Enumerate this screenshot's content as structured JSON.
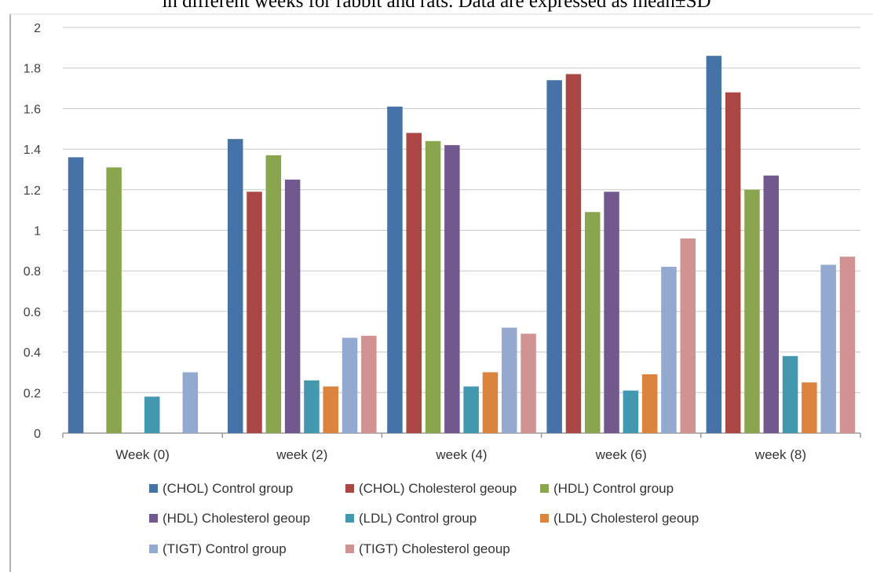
{
  "caption": "in different weeks for rabbit and rats. Data are expressed as mean±SD",
  "chart_data": {
    "type": "bar",
    "title": "",
    "xlabel": "",
    "ylabel": "",
    "ylim": [
      0,
      2
    ],
    "yticks": [
      "0",
      "0.2",
      "0.4",
      "0.6",
      "0.8",
      "1",
      "1.2",
      "1.4",
      "1.6",
      "1.8",
      "2"
    ],
    "grid": true,
    "legend_position": "bottom",
    "categories": [
      "Week (0)",
      "week (2)",
      "week (4)",
      "week (6)",
      "week (8)"
    ],
    "series": [
      {
        "name": "(CHOL) Control group",
        "color": "#4572A7",
        "values": [
          1.36,
          1.45,
          1.61,
          1.74,
          1.86
        ]
      },
      {
        "name": "(CHOL) Cholesterol geoup",
        "color": "#AA4643",
        "values": [
          0,
          1.19,
          1.48,
          1.77,
          1.68
        ]
      },
      {
        "name": "(HDL) Control group",
        "color": "#89A54E",
        "values": [
          1.31,
          1.37,
          1.44,
          1.09,
          1.2
        ]
      },
      {
        "name": "(HDL) Cholesterol geoup",
        "color": "#71588F",
        "values": [
          0,
          1.25,
          1.42,
          1.19,
          1.27
        ]
      },
      {
        "name": "(LDL) Control group",
        "color": "#4198AF",
        "values": [
          0.18,
          0.26,
          0.23,
          0.21,
          0.38
        ]
      },
      {
        "name": "(LDL) Cholesterol geoup",
        "color": "#DB843D",
        "values": [
          0,
          0.23,
          0.3,
          0.29,
          0.25
        ]
      },
      {
        "name": "(TIGT) Control group",
        "color": "#93A9CF",
        "values": [
          0.3,
          0.47,
          0.52,
          0.82,
          0.83
        ]
      },
      {
        "name": "(TIGT) Cholesterol geoup",
        "color": "#D19392",
        "values": [
          0,
          0.48,
          0.49,
          0.96,
          0.87
        ]
      }
    ]
  }
}
